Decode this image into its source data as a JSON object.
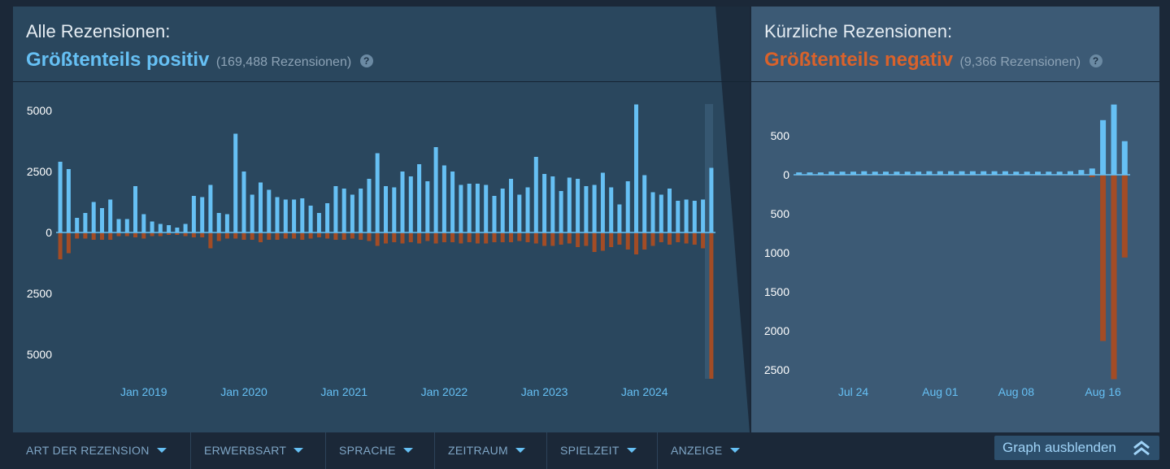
{
  "all_reviews": {
    "label": "Alle Rezensionen:",
    "summary": "Größtenteils positiv",
    "count": "(169,488 Rezensionen)",
    "help_icon": "question-icon"
  },
  "recent_reviews": {
    "label": "Kürzliche Rezensionen:",
    "summary": "Größtenteils negativ",
    "count": "(9,366 Rezensionen)",
    "help_icon": "question-icon"
  },
  "colors": {
    "positive": "#66c0f4",
    "negative": "#a34c25",
    "positive_text": "#66c0f4",
    "negative_text": "#d9622b",
    "axis_text": "#ffffff",
    "date_text": "#66c0f4"
  },
  "filters": [
    {
      "label": "ART DER REZENSION"
    },
    {
      "label": "ERWERBSART"
    },
    {
      "label": "SPRACHE"
    },
    {
      "label": "ZEITRAUM"
    },
    {
      "label": "SPIELZEIT"
    },
    {
      "label": "ANZEIGE"
    }
  ],
  "hide_graph": {
    "label": "Graph ausblenden",
    "icon": "double-chevron-up-icon"
  },
  "chart_data": [
    {
      "type": "bar",
      "y_tick_labels": [
        "5000",
        "2500",
        "0",
        "2500",
        "5000"
      ],
      "y_ticks": [
        5000,
        2500,
        0,
        -2500,
        -5000
      ],
      "ylim": [
        -6000,
        5300
      ],
      "x_tick_labels": [
        "Jan 2019",
        "Jan 2020",
        "Jan 2021",
        "Jan 2022",
        "Jan 2023",
        "Jan 2024"
      ],
      "x_tick_index": [
        10,
        22,
        34,
        46,
        58,
        70
      ],
      "series": [
        {
          "values": [
            2900,
            2600,
            600,
            800,
            1250,
            1000,
            1350,
            550,
            550,
            1900,
            750,
            450,
            350,
            300,
            200,
            350,
            1500,
            1450,
            1950,
            800,
            750,
            4050,
            2500,
            1550,
            2050,
            1750,
            1450,
            1350,
            1350,
            1400,
            1100,
            800,
            1200,
            1900,
            1800,
            1550,
            1800,
            2200,
            3250,
            1900,
            1850,
            2500,
            2300,
            2800,
            2100,
            3500,
            2750,
            2500,
            1950,
            2000,
            2000,
            1950,
            1500,
            1800,
            2200,
            1550,
            1850,
            3100,
            2400,
            2300,
            1700,
            2250,
            2200,
            1900,
            1950,
            2450,
            1850,
            1150,
            2100,
            5250,
            2350,
            1650,
            1550,
            1800,
            1300,
            1350,
            1300,
            1350,
            2650
          ]
        },
        {
          "values": [
            -1100,
            -850,
            -250,
            -250,
            -300,
            -300,
            -300,
            -150,
            -150,
            -200,
            -250,
            -150,
            -150,
            -100,
            -100,
            -150,
            -200,
            -200,
            -650,
            -350,
            -250,
            -250,
            -300,
            -300,
            -400,
            -300,
            -300,
            -250,
            -250,
            -300,
            -250,
            -200,
            -250,
            -300,
            -300,
            -250,
            -300,
            -350,
            -550,
            -450,
            -400,
            -450,
            -400,
            -450,
            -350,
            -450,
            -400,
            -400,
            -450,
            -400,
            -450,
            -450,
            -400,
            -400,
            -400,
            -350,
            -400,
            -450,
            -550,
            -550,
            -500,
            -450,
            -600,
            -550,
            -800,
            -750,
            -600,
            -500,
            -700,
            -900,
            -700,
            -550,
            -400,
            -500,
            -400,
            -450,
            -500,
            -650,
            -6000
          ]
        }
      ]
    },
    {
      "type": "bar",
      "y_tick_labels": [
        "500",
        "0",
        "500",
        "1000",
        "1500",
        "2000",
        "2500"
      ],
      "y_ticks": [
        500,
        0,
        -500,
        -1000,
        -1500,
        -2000,
        -2500
      ],
      "ylim": [
        -2620,
        920
      ],
      "x_tick_labels": [
        "Jul 24",
        "Aug 01",
        "Aug 08",
        "Aug 16"
      ],
      "x_tick_index": [
        5,
        13,
        20,
        28
      ],
      "series": [
        {
          "values": [
            30,
            30,
            30,
            40,
            40,
            40,
            45,
            40,
            40,
            40,
            40,
            40,
            45,
            45,
            45,
            45,
            45,
            45,
            45,
            45,
            40,
            40,
            40,
            40,
            40,
            45,
            60,
            80,
            700,
            900,
            430
          ]
        },
        {
          "values": [
            -10,
            -10,
            -10,
            -10,
            -10,
            -10,
            -10,
            -10,
            -10,
            -10,
            -10,
            -10,
            -10,
            -10,
            -10,
            -10,
            -10,
            -10,
            -10,
            -10,
            -10,
            -10,
            -10,
            -10,
            -10,
            -10,
            -10,
            -30,
            -2130,
            -2620,
            -1060
          ]
        }
      ]
    }
  ]
}
